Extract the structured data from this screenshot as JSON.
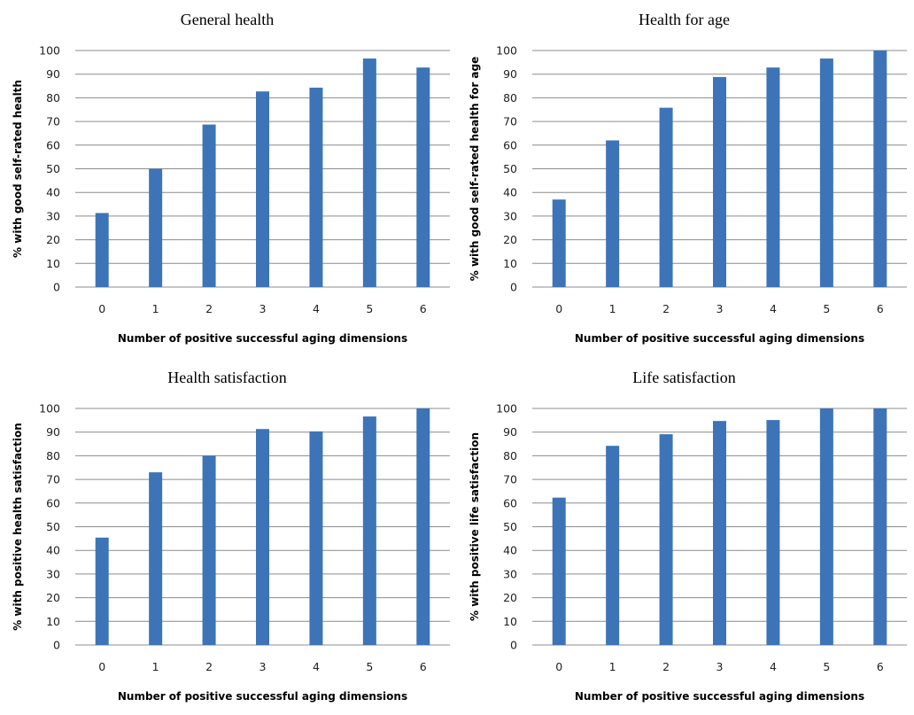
{
  "chart_data": [
    {
      "type": "bar",
      "title": "General health",
      "xlabel": "Number of positive successful aging dimensions",
      "ylabel": "% with good self-rated health",
      "categories": [
        "0",
        "1",
        "2",
        "3",
        "4",
        "5",
        "6"
      ],
      "values": [
        31.3,
        50,
        68.7,
        82.7,
        84.3,
        96.6,
        92.8
      ],
      "ylim": [
        0,
        100
      ],
      "yticks": [
        "0",
        "10",
        "20",
        "30",
        "40",
        "50",
        "60",
        "70",
        "80",
        "90",
        "100"
      ],
      "grid": true,
      "color": "#3d74b7"
    },
    {
      "type": "bar",
      "title": "Health for age",
      "xlabel": "Number of positive successful aging dimensions",
      "ylabel": "% with good self-rated health for age",
      "categories": [
        "0",
        "1",
        "2",
        "3",
        "4",
        "5",
        "6"
      ],
      "values": [
        37,
        62,
        75.8,
        88.8,
        92.8,
        96.6,
        100
      ],
      "ylim": [
        0,
        100
      ],
      "yticks": [
        "0",
        "10",
        "20",
        "30",
        "40",
        "50",
        "60",
        "70",
        "80",
        "90",
        "100"
      ],
      "grid": true,
      "color": "#3d74b7"
    },
    {
      "type": "bar",
      "title": "Health satisfaction",
      "xlabel": "Number of positive successful aging dimensions",
      "ylabel": "% with positive health satisfaction",
      "categories": [
        "0",
        "1",
        "2",
        "3",
        "4",
        "5",
        "6"
      ],
      "values": [
        45.4,
        73,
        80,
        91.3,
        90.3,
        96.6,
        100
      ],
      "ylim": [
        0,
        100
      ],
      "yticks": [
        "0",
        "10",
        "20",
        "30",
        "40",
        "50",
        "60",
        "70",
        "80",
        "90",
        "100"
      ],
      "grid": true,
      "color": "#3d74b7"
    },
    {
      "type": "bar",
      "title": "Life satisfaction",
      "xlabel": "Number of positive successful aging dimensions",
      "ylabel": "% with positive life satisfaction",
      "categories": [
        "0",
        "1",
        "2",
        "3",
        "4",
        "5",
        "6"
      ],
      "values": [
        62.3,
        84.2,
        89.1,
        94.7,
        95.1,
        100,
        100
      ],
      "ylim": [
        0,
        100
      ],
      "yticks": [
        "0",
        "10",
        "20",
        "30",
        "40",
        "50",
        "60",
        "70",
        "80",
        "90",
        "100"
      ],
      "grid": true,
      "color": "#3d74b7"
    }
  ]
}
